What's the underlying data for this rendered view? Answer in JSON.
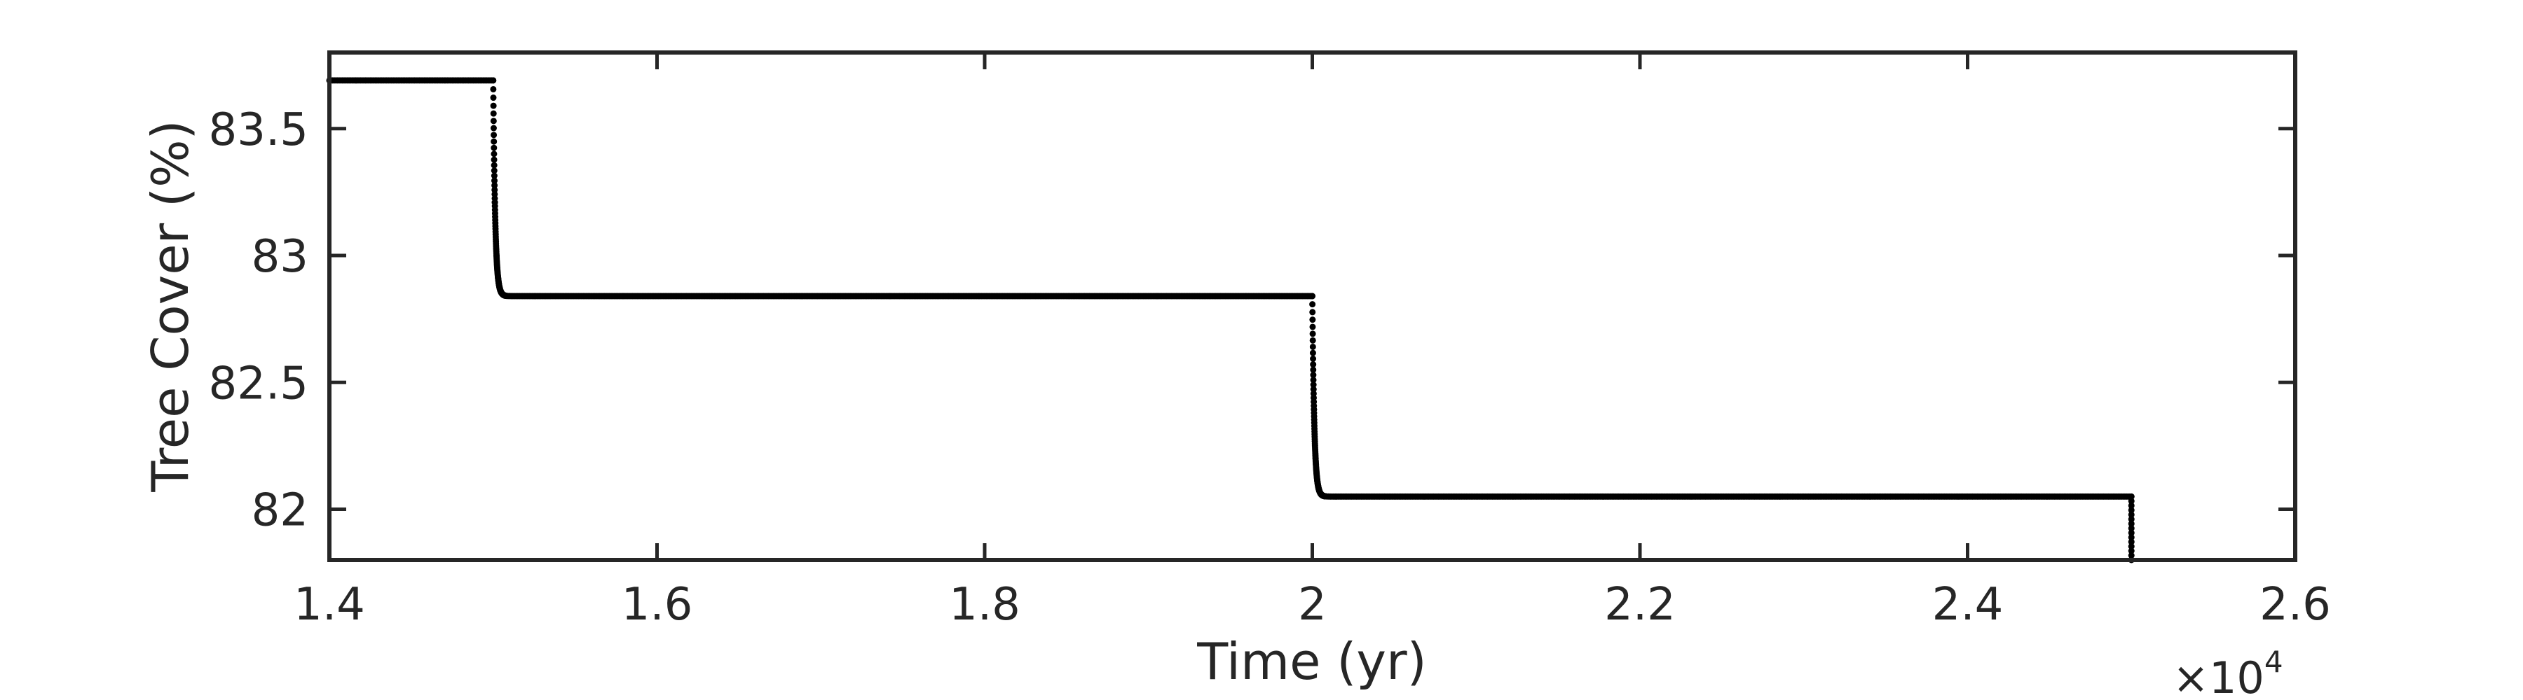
{
  "chart_data": {
    "type": "scatter",
    "xlabel": "Time (yr)",
    "ylabel": "Tree Cover (%)",
    "x_multiplier_label": "×10",
    "x_multiplier_exp": "4",
    "xlim": [
      14000,
      26000
    ],
    "ylim": [
      81.8,
      83.8
    ],
    "x_ticks": [
      14000,
      16000,
      18000,
      20000,
      22000,
      24000,
      26000
    ],
    "x_tick_labels": [
      "1.4",
      "1.6",
      "1.8",
      "2",
      "2.2",
      "2.4",
      "2.6"
    ],
    "y_ticks": [
      82,
      82.5,
      83,
      83.5
    ],
    "y_tick_labels": [
      "82",
      "82.5",
      "83",
      "83.5"
    ],
    "grid": false,
    "marker_color": "#000000",
    "segments": [
      {
        "x_start": 14000,
        "x_end": 15000,
        "level": 83.69
      },
      {
        "x_start": 15000,
        "x_end": 20000,
        "from": 83.69,
        "level": 82.84
      },
      {
        "x_start": 20000,
        "x_end": 25000,
        "from": 82.84,
        "level": 82.05
      },
      {
        "x_start": 25000,
        "x_end": 25000,
        "from": 82.05,
        "level": 81.8
      }
    ]
  }
}
